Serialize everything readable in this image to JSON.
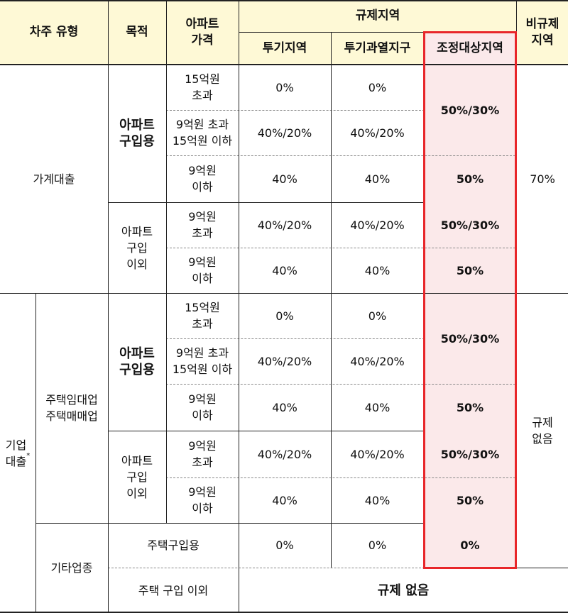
{
  "header": {
    "borrower_type": "차주 유형",
    "purpose": "목적",
    "apt_price": "아파트\n가격",
    "regulated_area": "규제지역",
    "speculation_area": "투기지역",
    "overheated_district": "투기과열지구",
    "adjustment_area": "조정대상지역",
    "non_regulated": "비규제\n지역"
  },
  "household_loan": {
    "label": "가계대출",
    "non_regulated_value": "70%",
    "apt_purchase": {
      "label": "아파트\n구입용",
      "rows": [
        {
          "price": "15억원\n초과",
          "speculation": "0%",
          "overheated": "0%"
        },
        {
          "price": "9억원  초과\n15억원  이하",
          "speculation": "40%/20%",
          "overheated": "40%/20%"
        },
        {
          "price": "9억원\n이하",
          "speculation": "40%",
          "overheated": "40%",
          "adjustment": "50%"
        }
      ],
      "adjustment_merged": "50%/30%"
    },
    "other": {
      "label": "아파트\n구입\n이외",
      "rows": [
        {
          "price": "9억원\n초과",
          "speculation": "40%/20%",
          "overheated": "40%/20%",
          "adjustment": "50%/30%"
        },
        {
          "price": "9억원\n이하",
          "speculation": "40%",
          "overheated": "40%",
          "adjustment": "50%"
        }
      ]
    }
  },
  "corporate_loan": {
    "label": "기업\n대출",
    "asterisk": "*",
    "non_regulated_value": "규제\n없음",
    "rental_business": {
      "label": "주택임대업\n주택매매업",
      "apt_purchase": {
        "label": "아파트\n구입용",
        "rows": [
          {
            "price": "15억원\n초과",
            "speculation": "0%",
            "overheated": "0%"
          },
          {
            "price": "9억원  초과\n15억원  이하",
            "speculation": "40%/20%",
            "overheated": "40%/20%"
          },
          {
            "price": "9억원\n이하",
            "speculation": "40%",
            "overheated": "40%",
            "adjustment": "50%"
          }
        ],
        "adjustment_merged": "50%/30%"
      },
      "other": {
        "label": "아파트\n구입\n이외",
        "rows": [
          {
            "price": "9억원\n초과",
            "speculation": "40%/20%",
            "overheated": "40%/20%",
            "adjustment": "50%/30%"
          },
          {
            "price": "9억원\n이하",
            "speculation": "40%",
            "overheated": "40%",
            "adjustment": "50%"
          }
        ]
      }
    },
    "other_business": {
      "label": "기타업종",
      "housing_purchase": {
        "label": "주택구입용",
        "speculation": "0%",
        "overheated": "0%",
        "adjustment": "0%"
      },
      "non_housing": {
        "label": "주택  구입  이외",
        "value": "규제  없음"
      }
    }
  },
  "colors": {
    "header_bg": "#fef9d6",
    "highlight_bg": "#fbe9ea",
    "highlight_border": "#e8262a"
  }
}
